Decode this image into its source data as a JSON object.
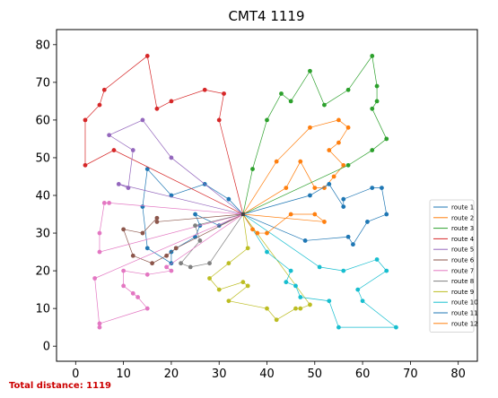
{
  "chart_data": {
    "type": "line",
    "title": "CMT4 1119",
    "xlabel": "",
    "ylabel": "",
    "xlim": [
      -4,
      84
    ],
    "ylim": [
      -4,
      84
    ],
    "xticks": [
      0,
      10,
      20,
      30,
      40,
      50,
      60,
      70,
      80
    ],
    "yticks": [
      0,
      10,
      20,
      30,
      40,
      50,
      60,
      70,
      80
    ],
    "grid": false,
    "legend_position": "lower-right",
    "depot": [
      35,
      35
    ],
    "footer": "Total distance: 1119",
    "series": [
      {
        "name": "route 1",
        "color": "#1f77b4",
        "points": [
          [
            35,
            35
          ],
          [
            30,
            32
          ],
          [
            25,
            35
          ],
          [
            26,
            32
          ],
          [
            25,
            29
          ],
          [
            21,
            26
          ],
          [
            20,
            25
          ],
          [
            20,
            22
          ],
          [
            15,
            26
          ],
          [
            14,
            37
          ],
          [
            15,
            47
          ],
          [
            20,
            40
          ],
          [
            27,
            43
          ],
          [
            32,
            39
          ],
          [
            35,
            35
          ]
        ]
      },
      {
        "name": "route 2",
        "color": "#ff7f0e",
        "points": [
          [
            35,
            35
          ],
          [
            44,
            42
          ],
          [
            47,
            49
          ],
          [
            50,
            42
          ],
          [
            52,
            42
          ],
          [
            54,
            45
          ],
          [
            56,
            48
          ],
          [
            53,
            52
          ],
          [
            55,
            54
          ],
          [
            57,
            58
          ],
          [
            55,
            60
          ],
          [
            49,
            58
          ],
          [
            42,
            49
          ],
          [
            35,
            35
          ]
        ]
      },
      {
        "name": "route 3",
        "color": "#2ca02c",
        "points": [
          [
            35,
            35
          ],
          [
            37,
            47
          ],
          [
            40,
            60
          ],
          [
            43,
            67
          ],
          [
            45,
            65
          ],
          [
            49,
            73
          ],
          [
            52,
            64
          ],
          [
            57,
            68
          ],
          [
            62,
            77
          ],
          [
            63,
            69
          ],
          [
            63,
            65
          ],
          [
            62,
            63
          ],
          [
            65,
            55
          ],
          [
            62,
            52
          ],
          [
            57,
            48
          ],
          [
            35,
            35
          ]
        ]
      },
      {
        "name": "route 4",
        "color": "#d62728",
        "points": [
          [
            35,
            35
          ],
          [
            30,
            60
          ],
          [
            31,
            67
          ],
          [
            27,
            68
          ],
          [
            20,
            65
          ],
          [
            17,
            63
          ],
          [
            15,
            77
          ],
          [
            6,
            68
          ],
          [
            5,
            64
          ],
          [
            2,
            60
          ],
          [
            2,
            48
          ],
          [
            8,
            52
          ],
          [
            35,
            35
          ]
        ]
      },
      {
        "name": "route 5",
        "color": "#9467bd",
        "points": [
          [
            35,
            35
          ],
          [
            20,
            50
          ],
          [
            14,
            60
          ],
          [
            7,
            56
          ],
          [
            12,
            52
          ],
          [
            11,
            42
          ],
          [
            9,
            43
          ],
          [
            35,
            35
          ]
        ]
      },
      {
        "name": "route 6",
        "color": "#8c564b",
        "points": [
          [
            35,
            35
          ],
          [
            17,
            33
          ],
          [
            17,
            34
          ],
          [
            14,
            30
          ],
          [
            10,
            31
          ],
          [
            12,
            24
          ],
          [
            16,
            22
          ],
          [
            19,
            24
          ],
          [
            21,
            26
          ],
          [
            35,
            35
          ]
        ]
      },
      {
        "name": "route 7",
        "color": "#e377c2",
        "points": [
          [
            35,
            35
          ],
          [
            5,
            25
          ],
          [
            5,
            30
          ],
          [
            6,
            38
          ],
          [
            7,
            38
          ],
          [
            35,
            35
          ]
        ]
      },
      {
        "name": "route 8",
        "color": "#7f7f7f",
        "points": [
          [
            35,
            35
          ],
          [
            25,
            32
          ],
          [
            26,
            28
          ],
          [
            22,
            22
          ],
          [
            24,
            21
          ],
          [
            28,
            22
          ],
          [
            35,
            35
          ]
        ]
      },
      {
        "name": "route 9",
        "color": "#bcbd22",
        "points": [
          [
            35,
            35
          ],
          [
            36,
            26
          ],
          [
            32,
            22
          ],
          [
            28,
            18
          ],
          [
            30,
            15
          ],
          [
            35,
            17
          ],
          [
            36,
            16
          ],
          [
            32,
            12
          ],
          [
            40,
            10
          ],
          [
            42,
            7
          ],
          [
            46,
            10
          ],
          [
            47,
            10
          ],
          [
            49,
            11
          ],
          [
            35,
            35
          ]
        ]
      },
      {
        "name": "route 10",
        "color": "#17becf",
        "points": [
          [
            35,
            35
          ],
          [
            40,
            25
          ],
          [
            45,
            20
          ],
          [
            44,
            17
          ],
          [
            46,
            16
          ],
          [
            47,
            13
          ],
          [
            53,
            12
          ],
          [
            55,
            5
          ],
          [
            67,
            5
          ],
          [
            60,
            12
          ],
          [
            59,
            15
          ],
          [
            65,
            20
          ],
          [
            63,
            23
          ],
          [
            56,
            20
          ],
          [
            51,
            21
          ],
          [
            35,
            35
          ]
        ]
      },
      {
        "name": "route 11",
        "color": "#1f77b4",
        "points": [
          [
            35,
            35
          ],
          [
            48,
            28
          ],
          [
            57,
            29
          ],
          [
            58,
            27
          ],
          [
            61,
            33
          ],
          [
            65,
            35
          ],
          [
            64,
            42
          ],
          [
            62,
            42
          ],
          [
            56,
            39
          ],
          [
            56,
            37
          ],
          [
            53,
            43
          ],
          [
            49,
            40
          ],
          [
            35,
            35
          ]
        ]
      },
      {
        "name": "route 12",
        "color": "#ff7f0e",
        "points": [
          [
            35,
            35
          ],
          [
            37,
            31
          ],
          [
            38,
            30
          ],
          [
            40,
            30
          ],
          [
            45,
            35
          ],
          [
            50,
            35
          ],
          [
            52,
            33
          ],
          [
            35,
            35
          ]
        ]
      },
      {
        "name": "",
        "color": "#e377c2",
        "points": [
          [
            35,
            35
          ],
          [
            19,
            21
          ],
          [
            20,
            20
          ],
          [
            15,
            19
          ],
          [
            10,
            20
          ],
          [
            10,
            16
          ],
          [
            12,
            14
          ],
          [
            13,
            13
          ],
          [
            15,
            10
          ],
          [
            5,
            6
          ],
          [
            5,
            5
          ],
          [
            4,
            18
          ],
          [
            35,
            35
          ]
        ]
      }
    ]
  }
}
